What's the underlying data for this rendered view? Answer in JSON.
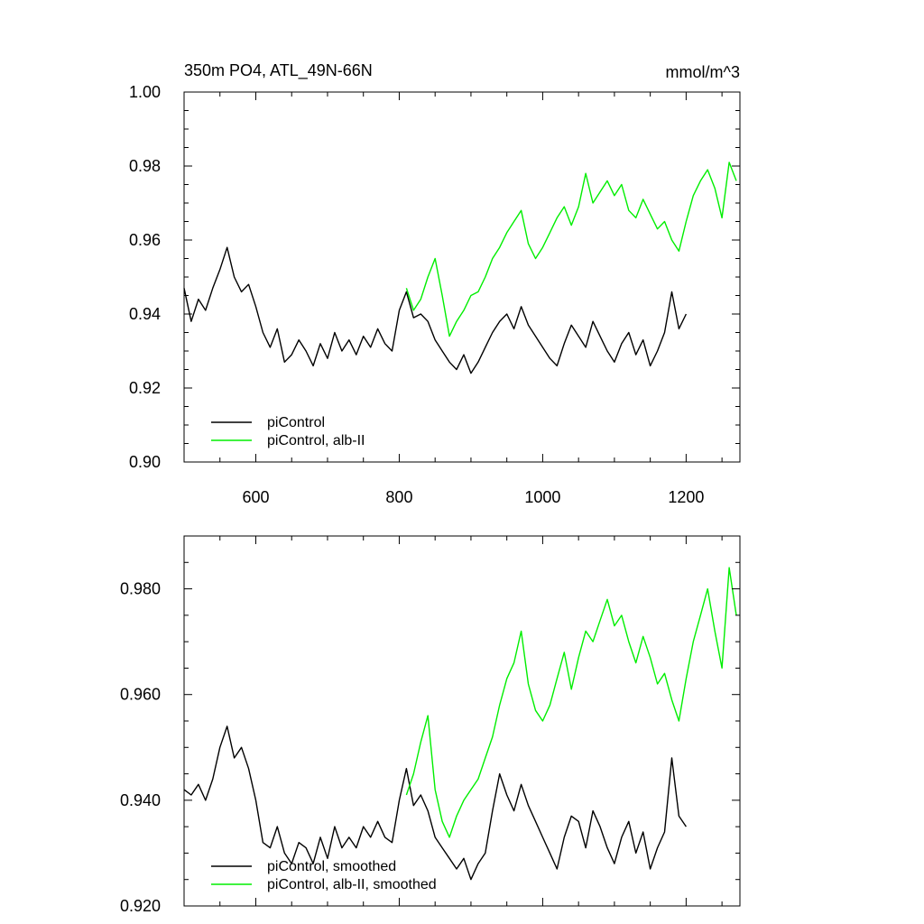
{
  "title": "350m PO4, ATL_49N-66N",
  "units": "mmol/m^3",
  "colors": {
    "piControl": "#000000",
    "alb_II": "#00ee00"
  },
  "chart_data": [
    {
      "type": "line",
      "panel": "top",
      "xlim": [
        500,
        1275
      ],
      "ylim": [
        0.9,
        1.0
      ],
      "x_ticks": [
        600,
        800,
        1000,
        1200
      ],
      "x_tick_labels": [
        "600",
        "800",
        "1000",
        "1200"
      ],
      "y_ticks": [
        0.9,
        0.92,
        0.94,
        0.96,
        0.98,
        1.0
      ],
      "y_tick_labels": [
        "0.90",
        "0.92",
        "0.94",
        "0.96",
        "0.98",
        "1.00"
      ],
      "legend": {
        "placement": "bottom-left",
        "entries": [
          "piControl",
          "piControl, alb-II"
        ]
      },
      "series": [
        {
          "name": "piControl",
          "color": "#000000",
          "x": [
            500,
            510,
            520,
            530,
            540,
            550,
            560,
            570,
            580,
            590,
            600,
            610,
            620,
            630,
            640,
            650,
            660,
            670,
            680,
            690,
            700,
            710,
            720,
            730,
            740,
            750,
            760,
            770,
            780,
            790,
            800,
            810,
            820,
            830,
            840,
            850,
            860,
            870,
            880,
            890,
            900,
            910,
            920,
            930,
            940,
            950,
            960,
            970,
            980,
            990,
            1000,
            1010,
            1020,
            1030,
            1040,
            1050,
            1060,
            1070,
            1080,
            1090,
            1100,
            1110,
            1120,
            1130,
            1140,
            1150,
            1160,
            1170,
            1180,
            1190,
            1200
          ],
          "y": [
            0.947,
            0.938,
            0.944,
            0.941,
            0.947,
            0.952,
            0.958,
            0.95,
            0.946,
            0.948,
            0.942,
            0.935,
            0.931,
            0.936,
            0.927,
            0.929,
            0.933,
            0.93,
            0.926,
            0.932,
            0.928,
            0.935,
            0.93,
            0.933,
            0.929,
            0.934,
            0.931,
            0.936,
            0.932,
            0.93,
            0.941,
            0.946,
            0.939,
            0.94,
            0.938,
            0.933,
            0.93,
            0.927,
            0.925,
            0.929,
            0.924,
            0.927,
            0.931,
            0.935,
            0.938,
            0.94,
            0.936,
            0.942,
            0.937,
            0.934,
            0.931,
            0.928,
            0.926,
            0.932,
            0.937,
            0.934,
            0.931,
            0.938,
            0.934,
            0.93,
            0.927,
            0.932,
            0.935,
            0.929,
            0.933,
            0.926,
            0.93,
            0.935,
            0.946,
            0.936,
            0.94
          ]
        },
        {
          "name": "piControl, alb-II",
          "color": "#00ee00",
          "x": [
            810,
            820,
            830,
            840,
            850,
            860,
            870,
            880,
            890,
            900,
            910,
            920,
            930,
            940,
            950,
            960,
            970,
            980,
            990,
            1000,
            1010,
            1020,
            1030,
            1040,
            1050,
            1060,
            1070,
            1080,
            1090,
            1100,
            1110,
            1120,
            1130,
            1140,
            1150,
            1160,
            1170,
            1180,
            1190,
            1200,
            1210,
            1220,
            1230,
            1240,
            1250,
            1260,
            1270
          ],
          "y": [
            0.947,
            0.941,
            0.944,
            0.95,
            0.955,
            0.945,
            0.934,
            0.938,
            0.941,
            0.945,
            0.946,
            0.95,
            0.955,
            0.958,
            0.962,
            0.965,
            0.968,
            0.959,
            0.955,
            0.958,
            0.962,
            0.966,
            0.969,
            0.964,
            0.969,
            0.978,
            0.97,
            0.973,
            0.976,
            0.972,
            0.975,
            0.968,
            0.966,
            0.971,
            0.967,
            0.963,
            0.965,
            0.96,
            0.957,
            0.965,
            0.972,
            0.976,
            0.979,
            0.974,
            0.966,
            0.981,
            0.976
          ]
        }
      ]
    },
    {
      "type": "line",
      "panel": "bottom",
      "xlim": [
        500,
        1275
      ],
      "ylim": [
        0.92,
        0.99
      ],
      "x_ticks": [
        600,
        800,
        1000,
        1200
      ],
      "y_ticks": [
        0.92,
        0.94,
        0.96,
        0.98
      ],
      "y_tick_labels": [
        "0.920",
        "0.940",
        "0.960",
        "0.980"
      ],
      "legend": {
        "placement": "bottom-left",
        "entries": [
          "piControl, smoothed",
          "piControl, alb-II, smoothed"
        ]
      },
      "series": [
        {
          "name": "piControl, smoothed",
          "color": "#000000",
          "x": [
            500,
            510,
            520,
            530,
            540,
            550,
            560,
            570,
            580,
            590,
            600,
            610,
            620,
            630,
            640,
            650,
            660,
            670,
            680,
            690,
            700,
            710,
            720,
            730,
            740,
            750,
            760,
            770,
            780,
            790,
            800,
            810,
            820,
            830,
            840,
            850,
            860,
            870,
            880,
            890,
            900,
            910,
            920,
            930,
            940,
            950,
            960,
            970,
            980,
            990,
            1000,
            1010,
            1020,
            1030,
            1040,
            1050,
            1060,
            1070,
            1080,
            1090,
            1100,
            1110,
            1120,
            1130,
            1140,
            1150,
            1160,
            1170,
            1180,
            1190,
            1200
          ],
          "y": [
            0.942,
            0.941,
            0.943,
            0.94,
            0.944,
            0.95,
            0.954,
            0.948,
            0.95,
            0.946,
            0.94,
            0.932,
            0.931,
            0.935,
            0.93,
            0.928,
            0.932,
            0.931,
            0.928,
            0.933,
            0.929,
            0.935,
            0.931,
            0.933,
            0.931,
            0.935,
            0.933,
            0.936,
            0.933,
            0.932,
            0.94,
            0.946,
            0.939,
            0.941,
            0.938,
            0.933,
            0.931,
            0.929,
            0.927,
            0.929,
            0.925,
            0.928,
            0.93,
            0.938,
            0.945,
            0.941,
            0.938,
            0.943,
            0.939,
            0.936,
            0.933,
            0.93,
            0.927,
            0.933,
            0.937,
            0.936,
            0.931,
            0.938,
            0.935,
            0.931,
            0.928,
            0.933,
            0.936,
            0.93,
            0.934,
            0.927,
            0.931,
            0.934,
            0.948,
            0.937,
            0.935
          ]
        },
        {
          "name": "piControl, alb-II, smoothed",
          "color": "#00ee00",
          "x": [
            810,
            820,
            830,
            840,
            850,
            860,
            870,
            880,
            890,
            900,
            910,
            920,
            930,
            940,
            950,
            960,
            970,
            980,
            990,
            1000,
            1010,
            1020,
            1030,
            1040,
            1050,
            1060,
            1070,
            1080,
            1090,
            1100,
            1110,
            1120,
            1130,
            1140,
            1150,
            1160,
            1170,
            1180,
            1190,
            1200,
            1210,
            1220,
            1230,
            1240,
            1250,
            1260,
            1270
          ],
          "y": [
            0.941,
            0.945,
            0.951,
            0.956,
            0.942,
            0.936,
            0.933,
            0.937,
            0.94,
            0.942,
            0.944,
            0.948,
            0.952,
            0.958,
            0.963,
            0.966,
            0.972,
            0.962,
            0.957,
            0.955,
            0.958,
            0.963,
            0.968,
            0.961,
            0.967,
            0.972,
            0.97,
            0.974,
            0.978,
            0.973,
            0.975,
            0.97,
            0.966,
            0.971,
            0.967,
            0.962,
            0.964,
            0.959,
            0.955,
            0.963,
            0.97,
            0.975,
            0.98,
            0.972,
            0.965,
            0.984,
            0.975
          ]
        }
      ]
    }
  ]
}
